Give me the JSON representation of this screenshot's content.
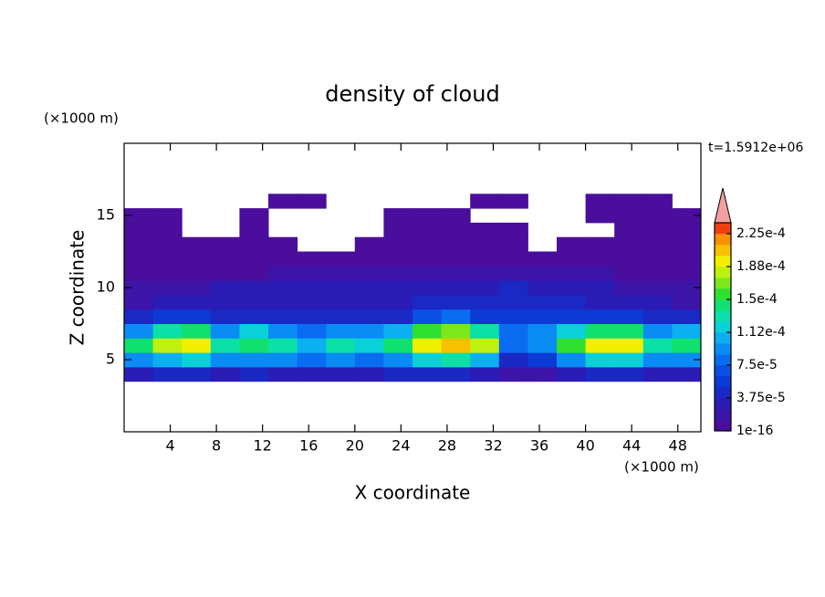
{
  "chart_data": {
    "type": "contour",
    "title": "density of cloud",
    "x_label": "X coordinate",
    "y_label": "Z coordinate",
    "x_unit": "(×1000 m)",
    "y_unit": "(×1000 m)",
    "annotation": "t=1.5912e+06",
    "xlim": [
      0,
      50
    ],
    "ylim": [
      0,
      20
    ],
    "xticks": [
      4,
      8,
      12,
      16,
      20,
      24,
      28,
      32,
      36,
      40,
      44,
      48
    ],
    "yticks": [
      5,
      10,
      15
    ],
    "x": [
      1.25,
      3.75,
      6.25,
      8.75,
      11.25,
      13.75,
      16.25,
      18.75,
      21.25,
      23.75,
      26.25,
      28.75,
      31.25,
      33.75,
      36.25,
      38.75,
      41.25,
      43.75,
      46.25,
      48.75
    ],
    "y": [
      4,
      5,
      6,
      7,
      8,
      9,
      10,
      11,
      12,
      13,
      14,
      15,
      16
    ],
    "z": [
      [
        3e-05,
        4e-05,
        4e-05,
        3e-05,
        4e-05,
        3e-05,
        3e-05,
        3e-05,
        3e-05,
        4e-05,
        4e-05,
        4e-05,
        3e-05,
        2e-05,
        2e-05,
        3e-05,
        4e-05,
        4e-05,
        3e-05,
        3e-05
      ],
      [
        9e-05,
        0.00011,
        0.00012,
        9e-05,
        0.0001,
        9e-05,
        8e-05,
        9e-05,
        8e-05,
        0.0001,
        0.00012,
        0.00013,
        0.00011,
        5e-05,
        6e-05,
        0.0001,
        0.00012,
        0.00012,
        9e-05,
        0.0001
      ],
      [
        0.00014,
        0.00018,
        0.00019,
        0.00013,
        0.00015,
        0.00013,
        0.00011,
        0.00013,
        0.00012,
        0.00015,
        0.0002,
        0.00021,
        0.00018,
        8e-05,
        9e-05,
        0.00016,
        0.0002,
        0.00019,
        0.00013,
        0.00015
      ],
      [
        0.0001,
        0.00013,
        0.00014,
        9e-05,
        0.00012,
        0.0001,
        8e-05,
        9e-05,
        9e-05,
        0.00011,
        0.00016,
        0.00017,
        0.00013,
        8e-05,
        9e-05,
        0.00012,
        0.00015,
        0.00014,
        9e-05,
        0.00011
      ],
      [
        5e-05,
        6e-05,
        6e-05,
        5e-05,
        5e-05,
        5e-05,
        5e-05,
        5e-05,
        5e-05,
        5e-05,
        7e-05,
        8e-05,
        6e-05,
        6e-05,
        6e-05,
        6e-05,
        6e-05,
        6e-05,
        5e-05,
        5e-05
      ],
      [
        2e-05,
        3e-05,
        3e-05,
        3e-05,
        3e-05,
        3e-05,
        3e-05,
        3e-05,
        3e-05,
        3e-05,
        4e-05,
        4e-05,
        4e-05,
        4e-05,
        5e-05,
        4e-05,
        3e-05,
        3e-05,
        3e-05,
        2e-05
      ],
      [
        2e-05,
        2e-05,
        2e-05,
        3e-05,
        3e-05,
        3e-05,
        3e-05,
        3e-05,
        3e-05,
        3e-05,
        3e-05,
        3e-05,
        3e-05,
        4e-05,
        3e-05,
        3e-05,
        3e-05,
        2e-05,
        2e-05,
        2e-05
      ],
      [
        1e-05,
        1e-05,
        1e-05,
        1e-05,
        1e-05,
        2e-05,
        2e-05,
        2e-05,
        2e-05,
        2e-05,
        2e-05,
        2e-05,
        2e-05,
        2e-05,
        2e-05,
        2e-05,
        2e-05,
        1e-05,
        1e-05,
        1e-05
      ],
      [
        5e-06,
        5e-06,
        5e-06,
        5e-06,
        5e-06,
        5e-06,
        5e-06,
        1e-05,
        1e-05,
        1e-05,
        1e-05,
        1e-05,
        1e-05,
        1e-05,
        1e-05,
        5e-06,
        5e-06,
        5e-06,
        5e-06,
        5e-06
      ],
      [
        5e-06,
        5e-06,
        5e-06,
        5e-06,
        5e-06,
        5e-06,
        null,
        null,
        5e-06,
        5e-06,
        5e-06,
        5e-06,
        5e-06,
        5e-06,
        null,
        5e-06,
        5e-06,
        5e-06,
        5e-06,
        5e-06
      ],
      [
        5e-06,
        5e-06,
        null,
        null,
        5e-06,
        null,
        null,
        null,
        null,
        5e-06,
        5e-06,
        5e-06,
        5e-06,
        5e-06,
        null,
        null,
        null,
        5e-06,
        5e-06,
        5e-06
      ],
      [
        5e-06,
        5e-06,
        null,
        null,
        5e-06,
        null,
        null,
        null,
        null,
        5e-06,
        5e-06,
        5e-06,
        null,
        null,
        null,
        null,
        5e-06,
        5e-06,
        5e-06,
        5e-06
      ],
      [
        null,
        null,
        null,
        null,
        null,
        5e-06,
        5e-06,
        null,
        null,
        null,
        null,
        null,
        5e-06,
        5e-06,
        null,
        null,
        5e-06,
        5e-06,
        5e-06,
        null
      ]
    ],
    "colorbar": {
      "clim": [
        1e-16,
        0.0002375
      ],
      "ticks": [
        1e-16,
        {
          "value": 3.75e-05,
          "label": "3.75e-5"
        },
        {
          "value": 7.5e-05,
          "label": "7.5e-5"
        },
        {
          "value": 0.0001125,
          "label": "1.12e-4"
        },
        {
          "value": 0.00015,
          "label": "1.5e-4"
        },
        {
          "value": 0.0001875,
          "label": "1.88e-4"
        },
        {
          "value": 0.000225,
          "label": "2.25e-4"
        }
      ],
      "colors": [
        "#4a0d9c",
        "#3c14a8",
        "#2a1cb4",
        "#1a28c4",
        "#0c3ad4",
        "#0a50e4",
        "#0a6cf0",
        "#0a8cf4",
        "#0ab0f0",
        "#0ad0d8",
        "#0ae0a8",
        "#10e070",
        "#30e030",
        "#7ce81c",
        "#c0f010",
        "#f0f000",
        "#f8c000",
        "#f89000",
        "#f04010"
      ],
      "extend_color": "#f4a0a0"
    }
  }
}
